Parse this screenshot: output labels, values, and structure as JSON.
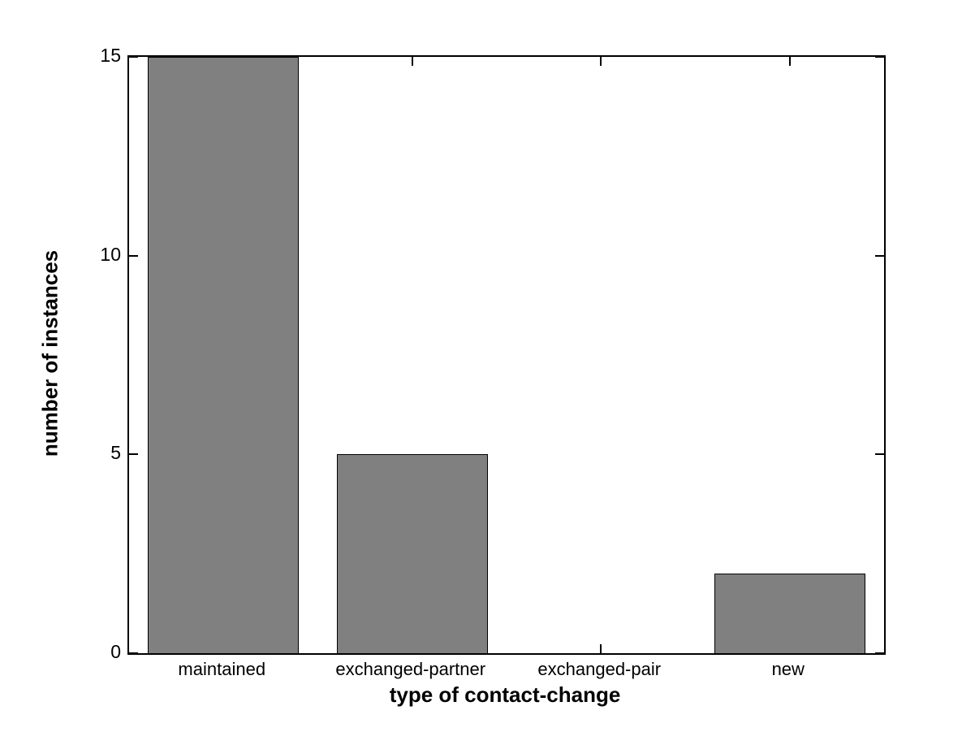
{
  "chart_data": {
    "type": "bar",
    "categories": [
      "maintained",
      "exchanged-partner",
      "exchanged-pair",
      "new"
    ],
    "values": [
      15,
      5,
      0,
      2
    ],
    "title": "",
    "xlabel": "type of contact-change",
    "ylabel": "number of instances",
    "ylim": [
      0,
      15
    ],
    "yticks": [
      0,
      5,
      10,
      15
    ],
    "bar_width_fraction": 0.8,
    "grid": false,
    "legend": null,
    "colors": {
      "bar_fill": "#808080",
      "bar_edge": "#000000",
      "axis": "#000000",
      "background": "#ffffff",
      "text": "#000000"
    }
  }
}
